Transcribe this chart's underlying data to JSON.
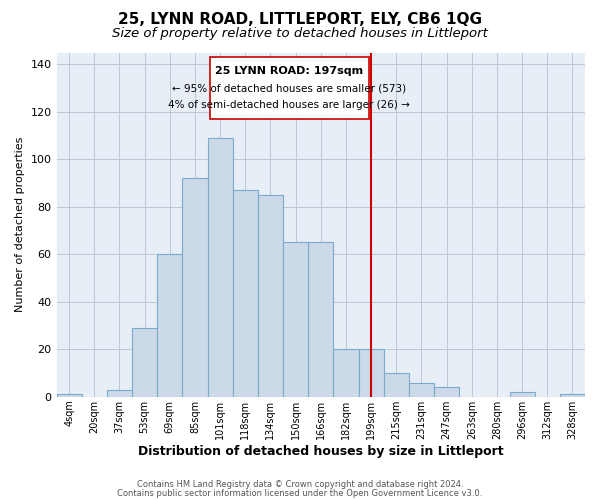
{
  "title": "25, LYNN ROAD, LITTLEPORT, ELY, CB6 1QG",
  "subtitle": "Size of property relative to detached houses in Littleport",
  "xlabel": "Distribution of detached houses by size in Littleport",
  "ylabel": "Number of detached properties",
  "bar_labels": [
    "4sqm",
    "20sqm",
    "37sqm",
    "53sqm",
    "69sqm",
    "85sqm",
    "101sqm",
    "118sqm",
    "134sqm",
    "150sqm",
    "166sqm",
    "182sqm",
    "199sqm",
    "215sqm",
    "231sqm",
    "247sqm",
    "263sqm",
    "280sqm",
    "296sqm",
    "312sqm",
    "328sqm"
  ],
  "bar_heights": [
    1,
    0,
    3,
    29,
    60,
    92,
    109,
    87,
    85,
    65,
    65,
    20,
    20,
    10,
    6,
    4,
    0,
    0,
    2,
    0,
    1
  ],
  "bar_color": "#ccd9e8",
  "bar_edge_color": "#7aabcf",
  "plot_bg_color": "#e8eef5",
  "vline_x_index": 12,
  "vline_color": "#cc0000",
  "annotation_title": "25 LYNN ROAD: 197sqm",
  "annotation_line1": "← 95% of detached houses are smaller (573)",
  "annotation_line2": "4% of semi-detached houses are larger (26) →",
  "annotation_box_color": "#ffffff",
  "annotation_box_edge": "#cc0000",
  "ylim": [
    0,
    145
  ],
  "yticks": [
    0,
    20,
    40,
    60,
    80,
    100,
    120,
    140
  ],
  "footer1": "Contains HM Land Registry data © Crown copyright and database right 2024.",
  "footer2": "Contains public sector information licensed under the Open Government Licence v3.0.",
  "background_color": "#ffffff",
  "title_fontsize": 11,
  "subtitle_fontsize": 9.5
}
